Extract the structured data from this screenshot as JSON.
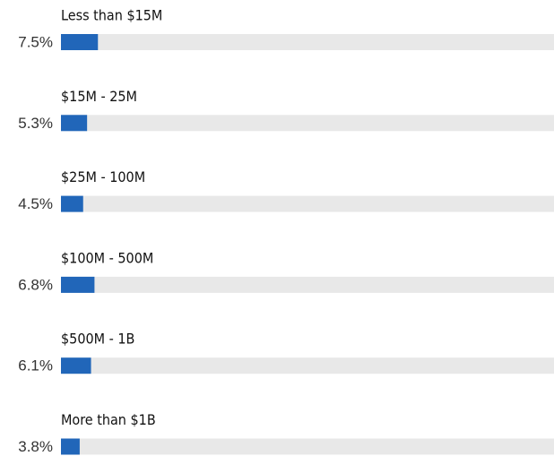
{
  "chart_data": {
    "type": "bar",
    "orientation": "horizontal",
    "categories": [
      "Less than $15M",
      "$15M - 25M",
      "$25M - 100M",
      "$100M - 500M",
      "$500M - 1B",
      "More than $1B"
    ],
    "values": [
      7.5,
      5.3,
      4.5,
      6.8,
      6.1,
      3.8
    ],
    "value_labels": [
      "7.5%",
      "5.3%",
      "4.5%",
      "6.8%",
      "6.1%",
      "3.8%"
    ],
    "xlim": [
      0,
      100
    ],
    "color": "#2166b9",
    "track_color": "#e8e8e8"
  }
}
